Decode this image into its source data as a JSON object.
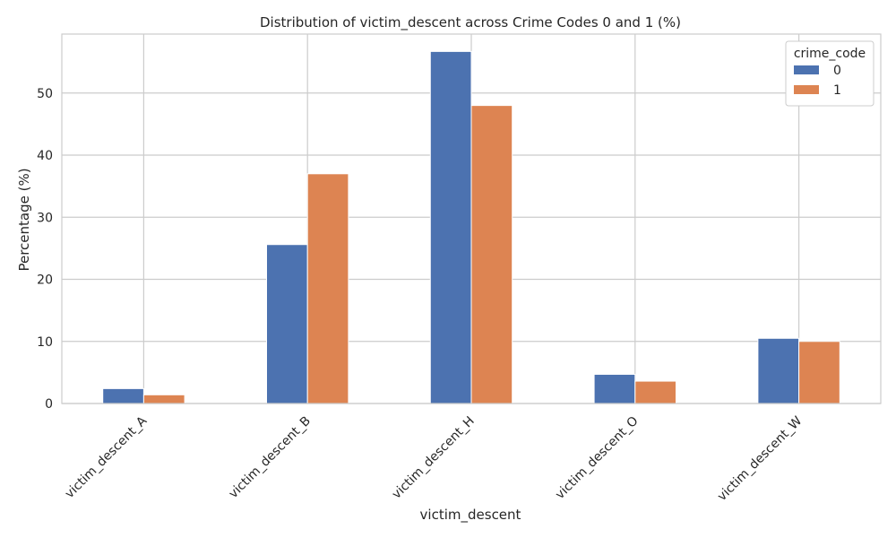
{
  "chart_data": {
    "type": "bar",
    "title": "Distribution of victim_descent across Crime Codes 0 and 1 (%)",
    "xlabel": "victim_descent",
    "ylabel": "Percentage (%)",
    "categories": [
      "victim_descent_A",
      "victim_descent_B",
      "victim_descent_H",
      "victim_descent_O",
      "victim_descent_W"
    ],
    "series": [
      {
        "name": "0",
        "color": "#4c72b0",
        "values": [
          2.4,
          25.6,
          56.7,
          4.7,
          10.5
        ]
      },
      {
        "name": "1",
        "color": "#dd8452",
        "values": [
          1.4,
          37.0,
          48.0,
          3.6,
          10.0
        ]
      }
    ],
    "ylim": [
      0,
      59.5
    ],
    "yticks": [
      0,
      10,
      20,
      30,
      40,
      50
    ],
    "grid": true,
    "legend": {
      "title": "crime_code",
      "placement": "top-right"
    }
  }
}
